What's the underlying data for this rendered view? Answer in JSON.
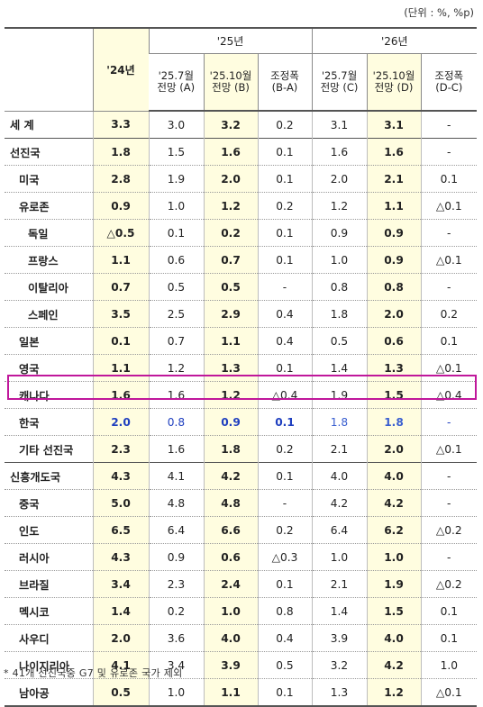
{
  "unit_note": "(단위 : %, %p)",
  "header": {
    "year24": "'24년",
    "year25": "'25년",
    "year26": "'26년",
    "sub": [
      "'25.7월\n전망 (A)",
      "'25.10월\n전망 (B)",
      "조정폭\n(B-A)",
      "'25.7월\n전망 (C)",
      "'25.10월\n전망 (D)",
      "조정폭\n(D-C)"
    ]
  },
  "rows": [
    {
      "label": "세  계",
      "indent": 0,
      "group": true,
      "v": [
        "3.3",
        "3.0",
        "3.2",
        "0.2",
        "3.1",
        "3.1",
        "-"
      ]
    },
    {
      "label": "선진국",
      "indent": 0,
      "group": true,
      "v": [
        "1.8",
        "1.5",
        "1.6",
        "0.1",
        "1.6",
        "1.6",
        "-"
      ]
    },
    {
      "label": "미국",
      "indent": 1,
      "group": false,
      "v": [
        "2.8",
        "1.9",
        "2.0",
        "0.1",
        "2.0",
        "2.1",
        "0.1"
      ]
    },
    {
      "label": "유로존",
      "indent": 1,
      "group": false,
      "v": [
        "0.9",
        "1.0",
        "1.2",
        "0.2",
        "1.2",
        "1.1",
        "△0.1"
      ]
    },
    {
      "label": "독일",
      "indent": 2,
      "group": false,
      "v": [
        "△0.5",
        "0.1",
        "0.2",
        "0.1",
        "0.9",
        "0.9",
        "-"
      ]
    },
    {
      "label": "프랑스",
      "indent": 2,
      "group": false,
      "v": [
        "1.1",
        "0.6",
        "0.7",
        "0.1",
        "1.0",
        "0.9",
        "△0.1"
      ]
    },
    {
      "label": "이탈리아",
      "indent": 2,
      "group": false,
      "v": [
        "0.7",
        "0.5",
        "0.5",
        "-",
        "0.8",
        "0.8",
        "-"
      ]
    },
    {
      "label": "스페인",
      "indent": 2,
      "group": false,
      "v": [
        "3.5",
        "2.5",
        "2.9",
        "0.4",
        "1.8",
        "2.0",
        "0.2"
      ]
    },
    {
      "label": "일본",
      "indent": 1,
      "group": false,
      "v": [
        "0.1",
        "0.7",
        "1.1",
        "0.4",
        "0.5",
        "0.6",
        "0.1"
      ]
    },
    {
      "label": "영국",
      "indent": 1,
      "group": false,
      "v": [
        "1.1",
        "1.2",
        "1.3",
        "0.1",
        "1.4",
        "1.3",
        "△0.1"
      ]
    },
    {
      "label": "캐나다",
      "indent": 1,
      "group": false,
      "v": [
        "1.6",
        "1.6",
        "1.2",
        "△0.4",
        "1.9",
        "1.5",
        "△0.4"
      ]
    },
    {
      "label": "한국",
      "indent": 1,
      "group": false,
      "korea": true,
      "v": [
        "2.0",
        "0.8",
        "0.9",
        "0.1",
        "1.8",
        "1.8",
        "-"
      ]
    },
    {
      "label": "기타 선진국",
      "indent": 1,
      "group": false,
      "v": [
        "2.3",
        "1.6",
        "1.8",
        "0.2",
        "2.1",
        "2.0",
        "△0.1"
      ]
    },
    {
      "label": "신흥개도국",
      "indent": 0,
      "group": true,
      "v": [
        "4.3",
        "4.1",
        "4.2",
        "0.1",
        "4.0",
        "4.0",
        "-"
      ]
    },
    {
      "label": "중국",
      "indent": 1,
      "group": false,
      "v": [
        "5.0",
        "4.8",
        "4.8",
        "-",
        "4.2",
        "4.2",
        "-"
      ]
    },
    {
      "label": "인도",
      "indent": 1,
      "group": false,
      "v": [
        "6.5",
        "6.4",
        "6.6",
        "0.2",
        "6.4",
        "6.2",
        "△0.2"
      ]
    },
    {
      "label": "러시아",
      "indent": 1,
      "group": false,
      "v": [
        "4.3",
        "0.9",
        "0.6",
        "△0.3",
        "1.0",
        "1.0",
        "-"
      ]
    },
    {
      "label": "브라질",
      "indent": 1,
      "group": false,
      "v": [
        "3.4",
        "2.3",
        "2.4",
        "0.1",
        "2.1",
        "1.9",
        "△0.2"
      ]
    },
    {
      "label": "멕시코",
      "indent": 1,
      "group": false,
      "v": [
        "1.4",
        "0.2",
        "1.0",
        "0.8",
        "1.4",
        "1.5",
        "0.1"
      ]
    },
    {
      "label": "사우디",
      "indent": 1,
      "group": false,
      "v": [
        "2.0",
        "3.6",
        "4.0",
        "0.4",
        "3.9",
        "4.0",
        "0.1"
      ]
    },
    {
      "label": "나이지리아",
      "indent": 1,
      "group": false,
      "v": [
        "4.1",
        "3.4",
        "3.9",
        "0.5",
        "3.2",
        "4.2",
        "1.0"
      ]
    },
    {
      "label": "남아공",
      "indent": 1,
      "group": false,
      "v": [
        "0.5",
        "1.0",
        "1.1",
        "0.1",
        "1.3",
        "1.2",
        "△0.1"
      ]
    }
  ],
  "footnote": "* 41개 선진국중 G7 및 유로존 국가 제외"
}
